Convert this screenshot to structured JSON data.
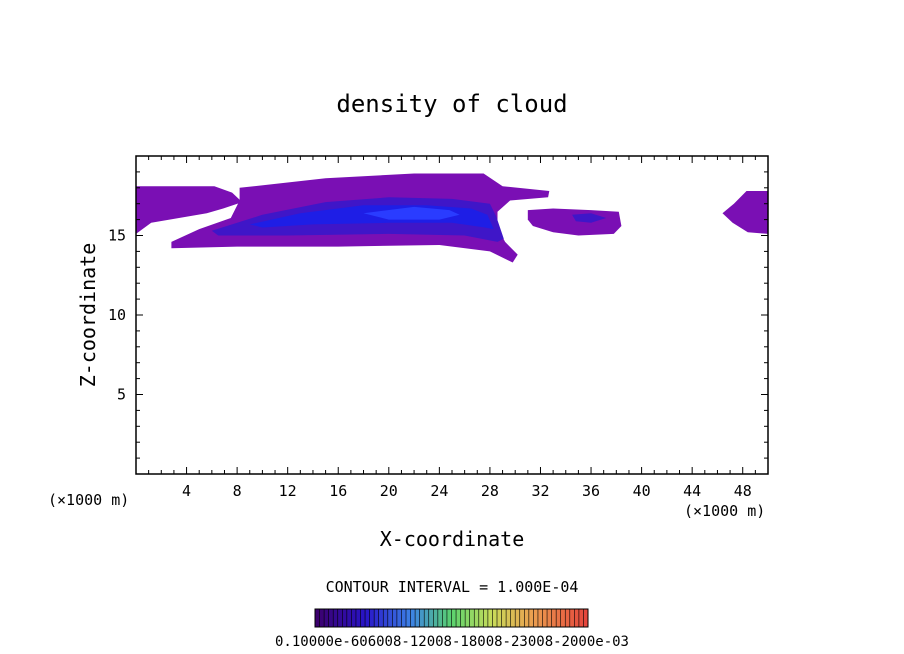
{
  "chart_data": {
    "type": "contour",
    "title": "density of cloud",
    "xlabel": "X-coordinate",
    "ylabel": "Z-coordinate",
    "x_unit_left": "(×1000 m)",
    "x_unit_right": "(×1000 m)",
    "xlim": [
      0,
      50
    ],
    "ylim": [
      0,
      20
    ],
    "x_ticks": [
      4,
      8,
      12,
      16,
      20,
      24,
      28,
      32,
      36,
      40,
      44,
      48
    ],
    "y_ticks": [
      5,
      10,
      15
    ],
    "contour_interval_label": "CONTOUR INTERVAL = 1.000E-04",
    "colorbar_label": "0.10000e-606008-12008-18008-23008-2000e-03",
    "colors": {
      "outer": "#7a0fb4",
      "mid": "#3f16c8",
      "core": "#1e1ee6",
      "peak": "#2a3cff"
    },
    "regions": [
      {
        "name": "left-edge-cloud",
        "level": "outer",
        "polygon": [
          [
            0,
            18.1
          ],
          [
            6.2,
            18.1
          ],
          [
            7.6,
            17.7
          ],
          [
            8.4,
            17.1
          ],
          [
            6.9,
            16.7
          ],
          [
            5.6,
            16.4
          ],
          [
            3.4,
            16.1
          ],
          [
            1.2,
            15.8
          ],
          [
            0,
            15.1
          ]
        ]
      },
      {
        "name": "main-cloud-outer",
        "level": "outer",
        "polygon": [
          [
            8.2,
            18.0
          ],
          [
            15.0,
            18.6
          ],
          [
            22.0,
            18.9
          ],
          [
            27.5,
            18.9
          ],
          [
            29.0,
            18.1
          ],
          [
            32.7,
            17.8
          ],
          [
            32.6,
            17.4
          ],
          [
            29.6,
            17.2
          ],
          [
            28.6,
            16.5
          ],
          [
            28.6,
            15.5
          ],
          [
            29.2,
            14.6
          ],
          [
            30.2,
            13.8
          ],
          [
            29.8,
            13.3
          ],
          [
            28.0,
            14.0
          ],
          [
            24.0,
            14.4
          ],
          [
            16.0,
            14.3
          ],
          [
            8.0,
            14.3
          ],
          [
            2.8,
            14.2
          ],
          [
            2.8,
            14.6
          ],
          [
            5.0,
            15.4
          ],
          [
            7.5,
            16.1
          ],
          [
            8.2,
            17.2
          ]
        ]
      },
      {
        "name": "main-cloud-mid",
        "level": "mid",
        "polygon": [
          [
            6.0,
            15.3
          ],
          [
            10.0,
            16.3
          ],
          [
            15.0,
            17.1
          ],
          [
            20.0,
            17.4
          ],
          [
            25.0,
            17.3
          ],
          [
            28.0,
            17.0
          ],
          [
            28.5,
            16.2
          ],
          [
            29.1,
            14.8
          ],
          [
            28.6,
            14.6
          ],
          [
            26.0,
            15.0
          ],
          [
            20.0,
            15.1
          ],
          [
            12.0,
            15.0
          ],
          [
            6.5,
            15.0
          ]
        ]
      },
      {
        "name": "main-cloud-core",
        "level": "core",
        "polygon": [
          [
            9.0,
            15.7
          ],
          [
            13.0,
            16.4
          ],
          [
            18.0,
            16.9
          ],
          [
            23.0,
            16.9
          ],
          [
            26.5,
            16.7
          ],
          [
            27.8,
            16.3
          ],
          [
            28.3,
            15.4
          ],
          [
            27.6,
            15.5
          ],
          [
            25.0,
            15.8
          ],
          [
            20.0,
            15.8
          ],
          [
            14.0,
            15.7
          ],
          [
            10.0,
            15.5
          ]
        ]
      },
      {
        "name": "main-cloud-peak",
        "level": "peak",
        "polygon": [
          [
            18.0,
            16.4
          ],
          [
            22.0,
            16.8
          ],
          [
            24.8,
            16.6
          ],
          [
            25.6,
            16.3
          ],
          [
            24.0,
            16.0
          ],
          [
            20.0,
            16.0
          ]
        ]
      },
      {
        "name": "right-small-cloud",
        "level": "outer",
        "polygon": [
          [
            31.0,
            16.6
          ],
          [
            33.0,
            16.7
          ],
          [
            36.0,
            16.6
          ],
          [
            38.2,
            16.5
          ],
          [
            38.4,
            15.6
          ],
          [
            37.8,
            15.1
          ],
          [
            35.0,
            15.0
          ],
          [
            33.0,
            15.2
          ],
          [
            31.4,
            15.6
          ],
          [
            31.0,
            16.0
          ]
        ]
      },
      {
        "name": "right-small-cloud-core",
        "level": "mid",
        "polygon": [
          [
            34.5,
            16.3
          ],
          [
            36.0,
            16.4
          ],
          [
            37.2,
            16.1
          ],
          [
            36.0,
            15.8
          ],
          [
            34.8,
            15.9
          ]
        ]
      },
      {
        "name": "right-edge-cloud",
        "level": "outer",
        "polygon": [
          [
            47.3,
            17.0
          ],
          [
            48.3,
            17.8
          ],
          [
            50,
            17.8
          ],
          [
            50,
            15.1
          ],
          [
            48.4,
            15.2
          ],
          [
            47.2,
            15.8
          ],
          [
            46.4,
            16.4
          ],
          [
            47.0,
            16.8
          ]
        ]
      }
    ]
  }
}
